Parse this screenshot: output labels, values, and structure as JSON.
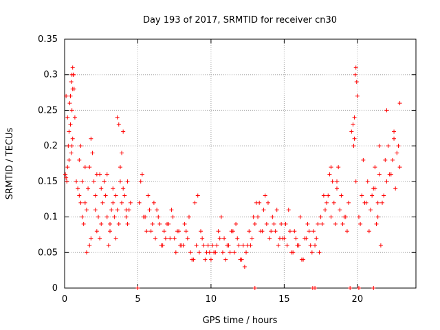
{
  "chart_data": {
    "type": "scatter",
    "title": "Day 193 of 2017, SRMTID for receiver cn30",
    "xlabel": "GPS time / hours",
    "ylabel": "SRMTID / TECUs",
    "xlim": [
      0,
      24
    ],
    "ylim": [
      0,
      0.35
    ],
    "xticks": [
      0,
      5,
      10,
      15,
      20
    ],
    "xtick_labels": [
      "0",
      "5",
      "10",
      "15",
      "20"
    ],
    "yticks": [
      0,
      0.05,
      0.1,
      0.15,
      0.2,
      0.25,
      0.3,
      0.35
    ],
    "ytick_labels": [
      "0",
      "0.05",
      "0.1",
      "0.15",
      "0.2",
      "0.25",
      "0.3",
      "0.35"
    ],
    "grid": true,
    "marker": "+",
    "color": "#ff0000",
    "series": [
      {
        "name": "SRMTID",
        "x": [
          0.05,
          0.1,
          0.15,
          0.2,
          0.25,
          0.3,
          0.35,
          0.4,
          0.45,
          0.5,
          0.55,
          0.6,
          0.65,
          0.7,
          0.3,
          0.4,
          0.5,
          0.55,
          0.6,
          0.5,
          0.45,
          0.55,
          0.1,
          0.2,
          0.8,
          0.9,
          1.0,
          1.1,
          1.2,
          1.3,
          1.4,
          1.5,
          1.6,
          1.7,
          1.8,
          1.9,
          2.0,
          2.1,
          2.2,
          2.3,
          2.4,
          2.5,
          2.6,
          2.7,
          2.8,
          2.9,
          3.0,
          3.1,
          3.2,
          3.3,
          3.4,
          3.5,
          3.6,
          3.7,
          3.8,
          3.9,
          4.0,
          4.1,
          4.2,
          4.3,
          4.4,
          4.5,
          1.0,
          1.2,
          1.5,
          1.8,
          2.2,
          2.5,
          2.9,
          3.3,
          3.6,
          4.0,
          4.3,
          1.1,
          1.4,
          1.7,
          2.1,
          2.4,
          2.7,
          3.1,
          3.5,
          3.9,
          4.2,
          3.7,
          3.8,
          5.1,
          5.2,
          5.4,
          5.6,
          5.8,
          6.0,
          6.2,
          6.4,
          6.6,
          6.8,
          7.0,
          7.2,
          7.4,
          7.6,
          7.8,
          8.0,
          8.2,
          8.4,
          8.6,
          8.8,
          9.0,
          9.2,
          9.4,
          9.6,
          9.8,
          5.3,
          5.7,
          6.1,
          6.5,
          6.9,
          7.3,
          7.7,
          8.1,
          8.5,
          8.9,
          9.3,
          9.7,
          5.5,
          5.9,
          6.3,
          6.7,
          7.1,
          7.5,
          7.9,
          8.3,
          8.7,
          9.1,
          9.5,
          9.9,
          10.0,
          10.2,
          10.4,
          10.6,
          10.8,
          11.0,
          11.2,
          11.4,
          11.6,
          11.8,
          12.0,
          12.2,
          12.4,
          12.6,
          12.8,
          13.0,
          13.2,
          13.4,
          13.6,
          13.8,
          14.0,
          14.2,
          14.4,
          14.6,
          14.8,
          10.1,
          10.5,
          10.9,
          11.3,
          11.7,
          12.1,
          12.5,
          12.9,
          13.3,
          13.7,
          14.1,
          14.5,
          14.9,
          10.3,
          10.7,
          11.1,
          11.5,
          11.9,
          12.3,
          12.7,
          13.1,
          13.5,
          13.9,
          14.3,
          14.7,
          15.0,
          15.2,
          15.4,
          15.6,
          15.8,
          16.0,
          16.2,
          16.4,
          16.6,
          16.8,
          17.0,
          17.2,
          17.4,
          17.6,
          17.8,
          18.0,
          18.2,
          18.4,
          18.6,
          18.8,
          19.0,
          19.2,
          19.4,
          15.1,
          15.5,
          15.9,
          16.3,
          16.7,
          17.1,
          17.5,
          17.9,
          18.3,
          18.7,
          19.1,
          15.3,
          15.7,
          16.1,
          16.5,
          16.9,
          17.3,
          17.7,
          18.1,
          18.5,
          18.9,
          19.3,
          18.2,
          18.6,
          19.6,
          19.7,
          19.8,
          19.85,
          19.9,
          19.95,
          20.0,
          19.75,
          19.8,
          19.9,
          20.1,
          20.3,
          20.5,
          20.7,
          20.9,
          21.1,
          21.3,
          21.5,
          21.7,
          21.9,
          22.1,
          22.3,
          22.5,
          22.7,
          22.9,
          20.2,
          20.6,
          21.0,
          21.4,
          21.8,
          22.2,
          22.6,
          20.4,
          20.8,
          21.2,
          21.6,
          22.0,
          22.4,
          22.8,
          21.5,
          22.0,
          22.5,
          22.9,
          21.2,
          21.4,
          5.0,
          13.0,
          16.95,
          17.1,
          19.5,
          20.1,
          21.1
        ],
        "y": [
          0.16,
          0.155,
          0.15,
          0.17,
          0.2,
          0.22,
          0.26,
          0.27,
          0.29,
          0.3,
          0.31,
          0.3,
          0.28,
          0.24,
          0.18,
          0.23,
          0.25,
          0.28,
          0.3,
          0.2,
          0.19,
          0.21,
          0.27,
          0.24,
          0.15,
          0.14,
          0.13,
          0.12,
          0.1,
          0.09,
          0.12,
          0.11,
          0.14,
          0.17,
          0.21,
          0.19,
          0.15,
          0.11,
          0.08,
          0.1,
          0.07,
          0.09,
          0.12,
          0.15,
          0.13,
          0.1,
          0.06,
          0.09,
          0.11,
          0.14,
          0.1,
          0.13,
          0.11,
          0.09,
          0.15,
          0.12,
          0.14,
          0.13,
          0.1,
          0.09,
          0.11,
          0.12,
          0.18,
          0.15,
          0.05,
          0.07,
          0.16,
          0.14,
          0.16,
          0.12,
          0.24,
          0.22,
          0.15,
          0.2,
          0.17,
          0.06,
          0.13,
          0.16,
          0.15,
          0.08,
          0.07,
          0.19,
          0.11,
          0.23,
          0.17,
          0.12,
          0.15,
          0.1,
          0.08,
          0.11,
          0.09,
          0.07,
          0.1,
          0.06,
          0.08,
          0.09,
          0.07,
          0.1,
          0.05,
          0.08,
          0.06,
          0.09,
          0.07,
          0.05,
          0.04,
          0.06,
          0.05,
          0.07,
          0.04,
          0.06,
          0.16,
          0.13,
          0.12,
          0.09,
          0.07,
          0.11,
          0.08,
          0.06,
          0.1,
          0.12,
          0.08,
          0.05,
          0.1,
          0.08,
          0.11,
          0.06,
          0.09,
          0.07,
          0.06,
          0.08,
          0.04,
          0.13,
          0.06,
          0.05,
          0.04,
          0.05,
          0.06,
          0.07,
          0.05,
          0.04,
          0.06,
          0.08,
          0.05,
          0.07,
          0.04,
          0.06,
          0.05,
          0.08,
          0.07,
          0.09,
          0.1,
          0.08,
          0.11,
          0.09,
          0.07,
          0.1,
          0.08,
          0.06,
          0.09,
          0.06,
          0.08,
          0.07,
          0.05,
          0.09,
          0.04,
          0.06,
          0.1,
          0.12,
          0.13,
          0.08,
          0.11,
          0.07,
          0.05,
          0.1,
          0.06,
          0.08,
          0.06,
          0.03,
          0.06,
          0.12,
          0.08,
          0.12,
          0.09,
          0.07,
          0.07,
          0.06,
          0.08,
          0.05,
          0.07,
          0.06,
          0.04,
          0.07,
          0.09,
          0.06,
          0.08,
          0.07,
          0.05,
          0.09,
          0.11,
          0.13,
          0.1,
          0.12,
          0.14,
          0.11,
          0.09,
          0.1,
          0.12,
          0.09,
          0.05,
          0.06,
          0.04,
          0.08,
          0.06,
          0.1,
          0.12,
          0.15,
          0.17,
          0.1,
          0.11,
          0.08,
          0.1,
          0.07,
          0.05,
          0.09,
          0.13,
          0.16,
          0.09,
          0.13,
          0.08,
          0.17,
          0.15,
          0.22,
          0.23,
          0.24,
          0.3,
          0.31,
          0.29,
          0.27,
          0.2,
          0.21,
          0.15,
          0.1,
          0.13,
          0.12,
          0.15,
          0.11,
          0.14,
          0.09,
          0.16,
          0.12,
          0.18,
          0.2,
          0.16,
          0.22,
          0.19,
          0.17,
          0.09,
          0.12,
          0.13,
          0.1,
          0.13,
          0.16,
          0.14,
          0.18,
          0.08,
          0.17,
          0.06,
          0.15,
          0.18,
          0.2,
          0.2,
          0.25,
          0.21,
          0.26,
          0.14,
          0.12,
          0,
          0,
          0,
          0,
          0,
          0,
          0
        ]
      }
    ]
  }
}
